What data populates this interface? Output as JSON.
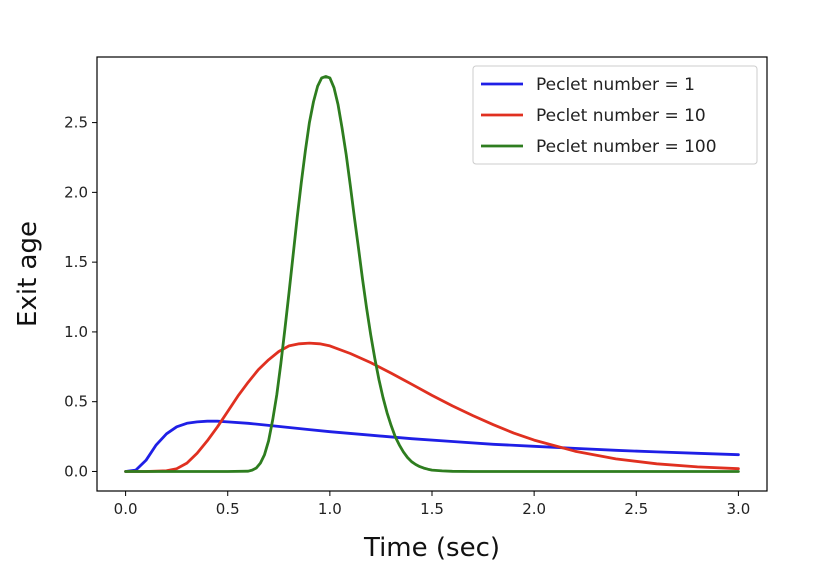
{
  "chart_data": {
    "type": "line",
    "title": "",
    "xlabel": "Time (sec)",
    "ylabel": "Exit age",
    "xlim": [
      -0.14,
      3.14
    ],
    "ylim": [
      -0.14,
      2.97
    ],
    "xticks": [
      0.0,
      0.5,
      1.0,
      1.5,
      2.0,
      2.5,
      3.0
    ],
    "xtick_labels": [
      "0.0",
      "0.5",
      "1.0",
      "1.5",
      "2.0",
      "2.5",
      "3.0"
    ],
    "yticks": [
      0.0,
      0.5,
      1.0,
      1.5,
      2.0,
      2.5
    ],
    "ytick_labels": [
      "0.0",
      "0.5",
      "1.0",
      "1.5",
      "2.0",
      "2.5"
    ],
    "grid": false,
    "legend_position": "top-right",
    "series": [
      {
        "name": "Peclet number = 1",
        "color": "#1f1fe6",
        "x": [
          0,
          0.05,
          0.1,
          0.15,
          0.2,
          0.25,
          0.3,
          0.35,
          0.4,
          0.45,
          0.5,
          0.6,
          0.7,
          0.8,
          0.9,
          1.0,
          1.2,
          1.4,
          1.6,
          1.8,
          2.0,
          2.2,
          2.4,
          2.6,
          2.8,
          3.0
        ],
        "y": [
          0,
          0.01,
          0.08,
          0.19,
          0.27,
          0.32,
          0.345,
          0.355,
          0.36,
          0.36,
          0.355,
          0.345,
          0.33,
          0.315,
          0.3,
          0.285,
          0.26,
          0.235,
          0.215,
          0.195,
          0.18,
          0.165,
          0.152,
          0.14,
          0.13,
          0.12
        ]
      },
      {
        "name": "Peclet number = 10",
        "color": "#e03020",
        "x": [
          0,
          0.1,
          0.2,
          0.25,
          0.3,
          0.35,
          0.4,
          0.45,
          0.5,
          0.55,
          0.6,
          0.65,
          0.7,
          0.75,
          0.8,
          0.85,
          0.9,
          0.95,
          1.0,
          1.1,
          1.2,
          1.3,
          1.4,
          1.5,
          1.6,
          1.7,
          1.8,
          1.9,
          2.0,
          2.2,
          2.4,
          2.6,
          2.8,
          3.0
        ],
        "y": [
          0,
          0,
          0.005,
          0.02,
          0.06,
          0.13,
          0.22,
          0.32,
          0.43,
          0.54,
          0.64,
          0.73,
          0.8,
          0.86,
          0.9,
          0.915,
          0.92,
          0.915,
          0.9,
          0.845,
          0.78,
          0.705,
          0.625,
          0.545,
          0.47,
          0.4,
          0.335,
          0.275,
          0.225,
          0.145,
          0.09,
          0.055,
          0.033,
          0.02
        ]
      },
      {
        "name": "Peclet number = 100",
        "color": "#2e7d1f",
        "x": [
          0,
          0.5,
          0.6,
          0.62,
          0.64,
          0.66,
          0.68,
          0.7,
          0.72,
          0.74,
          0.76,
          0.78,
          0.8,
          0.82,
          0.84,
          0.86,
          0.88,
          0.9,
          0.92,
          0.94,
          0.96,
          0.98,
          1.0,
          1.02,
          1.04,
          1.06,
          1.08,
          1.1,
          1.12,
          1.14,
          1.16,
          1.18,
          1.2,
          1.22,
          1.24,
          1.26,
          1.28,
          1.3,
          1.32,
          1.34,
          1.36,
          1.38,
          1.4,
          1.42,
          1.44,
          1.46,
          1.48,
          1.5,
          1.55,
          1.6,
          1.7,
          2.0,
          2.5,
          3.0
        ],
        "y": [
          0,
          0,
          0.002,
          0.01,
          0.025,
          0.06,
          0.12,
          0.22,
          0.37,
          0.55,
          0.77,
          1.02,
          1.28,
          1.55,
          1.82,
          2.07,
          2.3,
          2.5,
          2.65,
          2.76,
          2.82,
          2.83,
          2.82,
          2.75,
          2.63,
          2.46,
          2.27,
          2.05,
          1.82,
          1.6,
          1.38,
          1.17,
          0.98,
          0.81,
          0.66,
          0.53,
          0.42,
          0.33,
          0.25,
          0.19,
          0.14,
          0.1,
          0.07,
          0.05,
          0.035,
          0.024,
          0.016,
          0.01,
          0.004,
          0.001,
          0,
          0,
          0,
          0
        ]
      }
    ]
  }
}
